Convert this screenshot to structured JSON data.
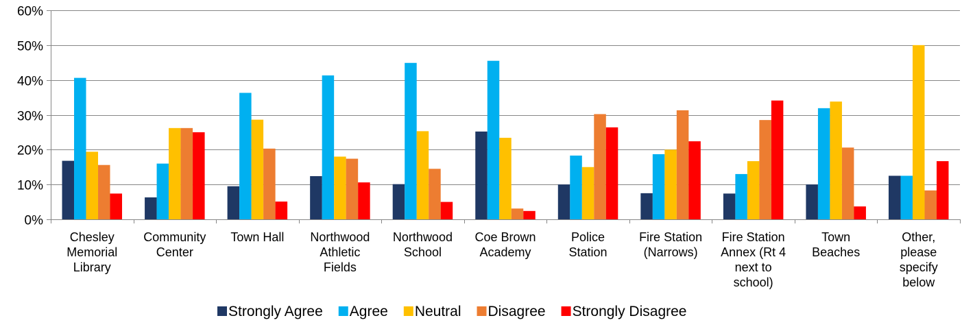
{
  "chart_data": {
    "type": "bar",
    "title": "",
    "xlabel": "",
    "ylabel": "",
    "ylim": [
      0,
      60
    ],
    "y_ticks": [
      "0%",
      "10%",
      "20%",
      "30%",
      "40%",
      "50%",
      "60%"
    ],
    "y_tick_values": [
      0,
      10,
      20,
      30,
      40,
      50,
      60
    ],
    "grid": true,
    "legend_position": "bottom",
    "categories": [
      [
        "Chesley",
        "Memorial",
        "Library"
      ],
      [
        "Community",
        "Center"
      ],
      [
        "Town Hall"
      ],
      [
        "Northwood",
        "Athletic",
        "Fields"
      ],
      [
        "Northwood",
        "School"
      ],
      [
        "Coe Brown",
        "Academy"
      ],
      [
        "Police",
        "Station"
      ],
      [
        "Fire Station",
        "(Narrows)"
      ],
      [
        "Fire Station",
        "Annex (Rt 4",
        "next to",
        "school)"
      ],
      [
        "Town",
        "Beaches"
      ],
      [
        "Other,",
        "please",
        "specify",
        "below"
      ]
    ],
    "series": [
      {
        "name": "Strongly Agree",
        "color": "#1f3864",
        "values": [
          16.8,
          6.3,
          9.5,
          12.4,
          10.1,
          25.2,
          10.0,
          7.5,
          7.4,
          10.0,
          12.5
        ]
      },
      {
        "name": "Agree",
        "color": "#00b0f0",
        "values": [
          40.6,
          16.0,
          36.3,
          41.3,
          44.9,
          45.5,
          18.3,
          18.7,
          13.0,
          31.9,
          12.5
        ]
      },
      {
        "name": "Neutral",
        "color": "#ffc000",
        "values": [
          19.4,
          26.2,
          28.6,
          18.0,
          25.3,
          23.4,
          15.0,
          20.0,
          16.7,
          33.8,
          50.0
        ]
      },
      {
        "name": "Disagree",
        "color": "#ed7d31",
        "values": [
          15.6,
          26.2,
          20.3,
          17.4,
          14.5,
          3.1,
          30.2,
          31.3,
          28.5,
          20.6,
          8.3
        ]
      },
      {
        "name": "Strongly Disagree",
        "color": "#ff0000",
        "values": [
          7.4,
          25.0,
          5.1,
          10.6,
          5.0,
          2.4,
          26.4,
          22.4,
          34.1,
          3.7,
          16.7
        ]
      }
    ]
  }
}
